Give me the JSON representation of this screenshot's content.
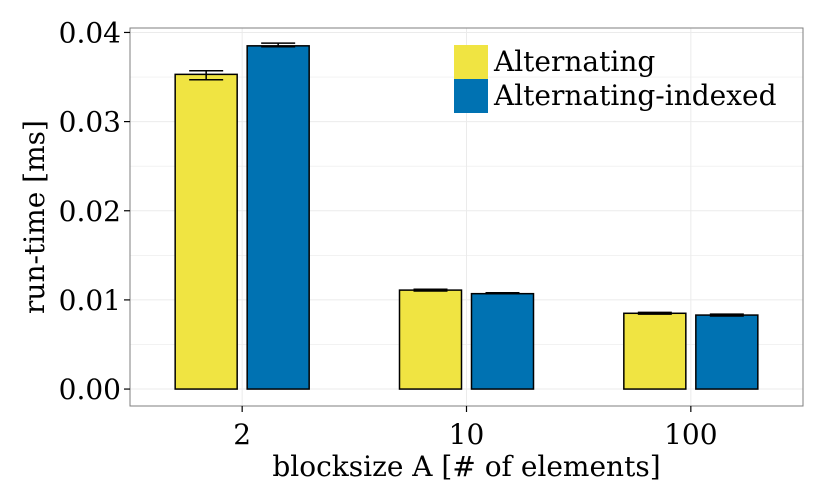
{
  "chart_data": {
    "type": "bar",
    "categories": [
      "2",
      "10",
      "100"
    ],
    "series": [
      {
        "name": "Alternating",
        "color": "#F0E442",
        "values": [
          0.0353,
          0.0111,
          0.0085
        ],
        "error_low": [
          0.0347,
          0.011,
          0.0084
        ],
        "error_high": [
          0.0357,
          0.0112,
          0.0086
        ]
      },
      {
        "name": "Alternating-indexed",
        "color": "#0072B2",
        "values": [
          0.0385,
          0.0107,
          0.0083
        ],
        "error_low": [
          0.0384,
          0.0107,
          0.0082
        ],
        "error_high": [
          0.0388,
          0.0108,
          0.0084
        ]
      }
    ],
    "xlabel": "blocksize A [# of elements]",
    "ylabel": "run-time [ms]",
    "ylim": [
      -0.0019,
      0.0405
    ],
    "yticks": [
      0.0,
      0.01,
      0.02,
      0.03,
      0.04
    ],
    "ytick_labels": [
      "0.00",
      "0.01",
      "0.02",
      "0.03",
      "0.04"
    ],
    "grid": true,
    "legend_position": "top-right",
    "panel_border_color": "#7f7f7f",
    "grid_color": "#ebebeb"
  }
}
